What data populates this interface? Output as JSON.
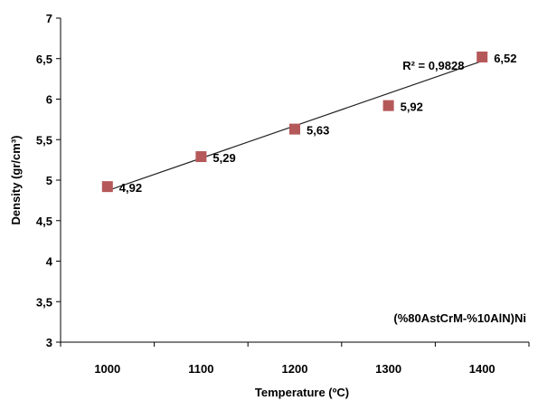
{
  "chart_data": {
    "type": "scatter",
    "xlabel": "Temperature (ºC)",
    "ylabel": "Density (gr/cm³)",
    "xlim": [
      950,
      1450
    ],
    "ylim": [
      3,
      7
    ],
    "x_ticks": [
      1000,
      1100,
      1200,
      1300,
      1400
    ],
    "x_tick_labels": [
      "1000",
      "1100",
      "1200",
      "1300",
      "1400"
    ],
    "y_ticks": [
      3,
      3.5,
      4,
      4.5,
      5,
      5.5,
      6,
      6.5,
      7
    ],
    "y_tick_labels": [
      "3",
      "3,5",
      "4",
      "4,5",
      "5",
      "5,5",
      "6",
      "6,5",
      "7"
    ],
    "grid": false,
    "series": [
      {
        "x": [
          1000,
          1100,
          1200,
          1300,
          1400
        ],
        "y": [
          4.92,
          5.29,
          5.63,
          5.92,
          6.52
        ],
        "data_labels": [
          "4,92",
          "5,29",
          "5,63",
          "5,92",
          "6,52"
        ],
        "marker": "square",
        "color": "#b5585a"
      }
    ],
    "trendline": {
      "type": "linear",
      "x": [
        1000,
        1400
      ],
      "y": [
        4.87,
        6.47
      ],
      "r_squared_label": "R² = 0,9828"
    },
    "annotations": [
      "(%80AstCrM-%10AlN)Ni"
    ]
  }
}
